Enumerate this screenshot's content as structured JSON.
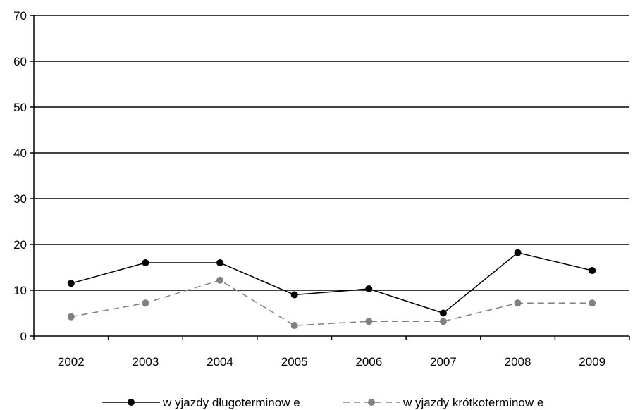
{
  "chart_data": {
    "type": "line",
    "categories": [
      "2002",
      "2003",
      "2004",
      "2005",
      "2006",
      "2007",
      "2008",
      "2009"
    ],
    "ylim": [
      0,
      70
    ],
    "yticks": [
      "0",
      "10",
      "20",
      "30",
      "40",
      "50",
      "60",
      "70"
    ],
    "grid": true,
    "legend_position": "bottom",
    "series": [
      {
        "name": "w yjazdy długoterminow e",
        "values": [
          11.5,
          16,
          16,
          9,
          10.3,
          5,
          18.2,
          14.3
        ],
        "color": "#000000",
        "style": "solid"
      },
      {
        "name": "w yjazdy krótkoterminow e",
        "values": [
          4.2,
          7.2,
          12.2,
          2.3,
          3.2,
          3.2,
          7.2,
          7.2
        ],
        "color": "#808080",
        "style": "dashed"
      }
    ]
  }
}
